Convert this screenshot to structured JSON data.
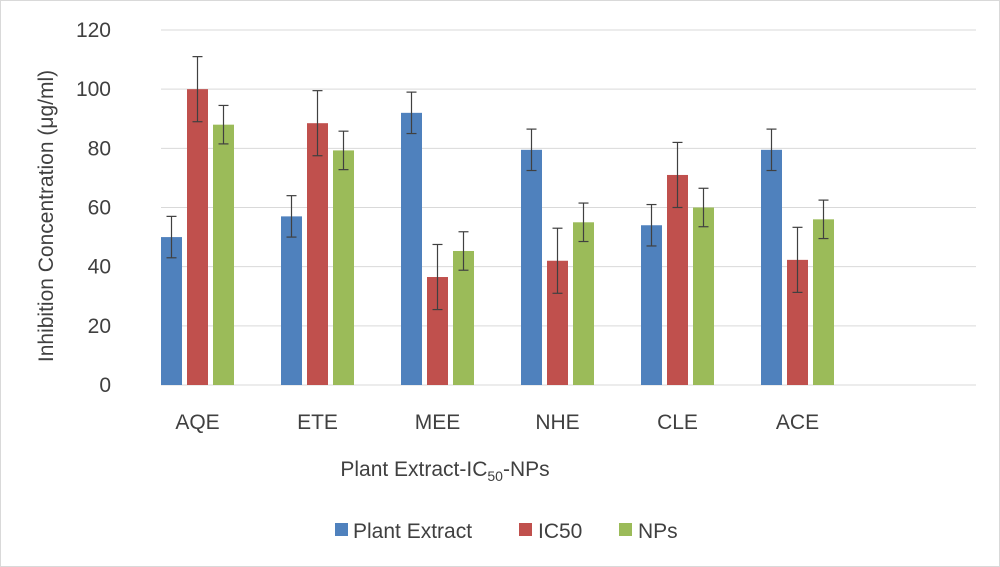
{
  "chart_data": {
    "type": "bar",
    "ylabel": "Inhibition Concentration (μg/ml)",
    "xlabel": {
      "prefix": "Plant Extract-IC",
      "subscript": "50",
      "suffix": "-NPs"
    },
    "ylim": [
      0,
      120
    ],
    "yticks": [
      "0",
      "20",
      "40",
      "60",
      "80",
      "100",
      "120"
    ],
    "grid": true,
    "legend_position": "bottom",
    "categories": [
      "AQE",
      "ETE",
      "MEE",
      "NHE",
      "CLE",
      "ACE"
    ],
    "series": [
      {
        "name": "Plant Extract",
        "color": "#4f81bd",
        "values": [
          50,
          57,
          92,
          79.5,
          54,
          79.5
        ],
        "errors": [
          7,
          7,
          7,
          7,
          7,
          7
        ]
      },
      {
        "name": "IC50",
        "color": "#c0504d",
        "values": [
          100,
          88.5,
          36.5,
          42,
          71,
          42.3
        ],
        "errors": [
          11,
          11,
          11,
          11,
          11,
          11
        ]
      },
      {
        "name": "NPs",
        "color": "#9bbb59",
        "values": [
          88,
          79.3,
          45.3,
          55,
          60,
          56
        ],
        "errors": [
          6.5,
          6.5,
          6.5,
          6.5,
          6.5,
          6.5
        ]
      }
    ]
  }
}
